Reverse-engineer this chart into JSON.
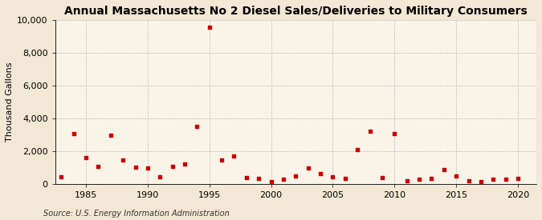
{
  "title": "Annual Massachusetts No 2 Diesel Sales/Deliveries to Military Consumers",
  "ylabel": "Thousand Gallons",
  "source": "Source: U.S. Energy Information Administration",
  "background_color": "#f2e8d5",
  "plot_background_color": "#faf4e8",
  "years": [
    1983,
    1984,
    1985,
    1986,
    1987,
    1988,
    1989,
    1990,
    1991,
    1992,
    1993,
    1994,
    1995,
    1996,
    1997,
    1998,
    1999,
    2000,
    2001,
    2002,
    2003,
    2004,
    2005,
    2006,
    2007,
    2008,
    2009,
    2010,
    2011,
    2012,
    2013,
    2014,
    2015,
    2016,
    2017,
    2018,
    2019,
    2020
  ],
  "values": [
    450,
    3050,
    1600,
    1050,
    2950,
    1450,
    1000,
    950,
    450,
    1050,
    1200,
    3500,
    9550,
    1450,
    1700,
    400,
    350,
    150,
    300,
    500,
    950,
    600,
    450,
    350,
    2100,
    3200,
    400,
    3050,
    200,
    300,
    350,
    850,
    500,
    200,
    150,
    300,
    300,
    350
  ],
  "marker_color": "#cc0000",
  "ylim": [
    0,
    10000
  ],
  "xlim": [
    1982.5,
    2021.5
  ],
  "yticks": [
    0,
    2000,
    4000,
    6000,
    8000,
    10000
  ],
  "xticks": [
    1985,
    1990,
    1995,
    2000,
    2005,
    2010,
    2015,
    2020
  ],
  "grid_color": "#bbbbbb",
  "title_fontsize": 10,
  "label_fontsize": 8,
  "tick_fontsize": 8,
  "source_fontsize": 7
}
